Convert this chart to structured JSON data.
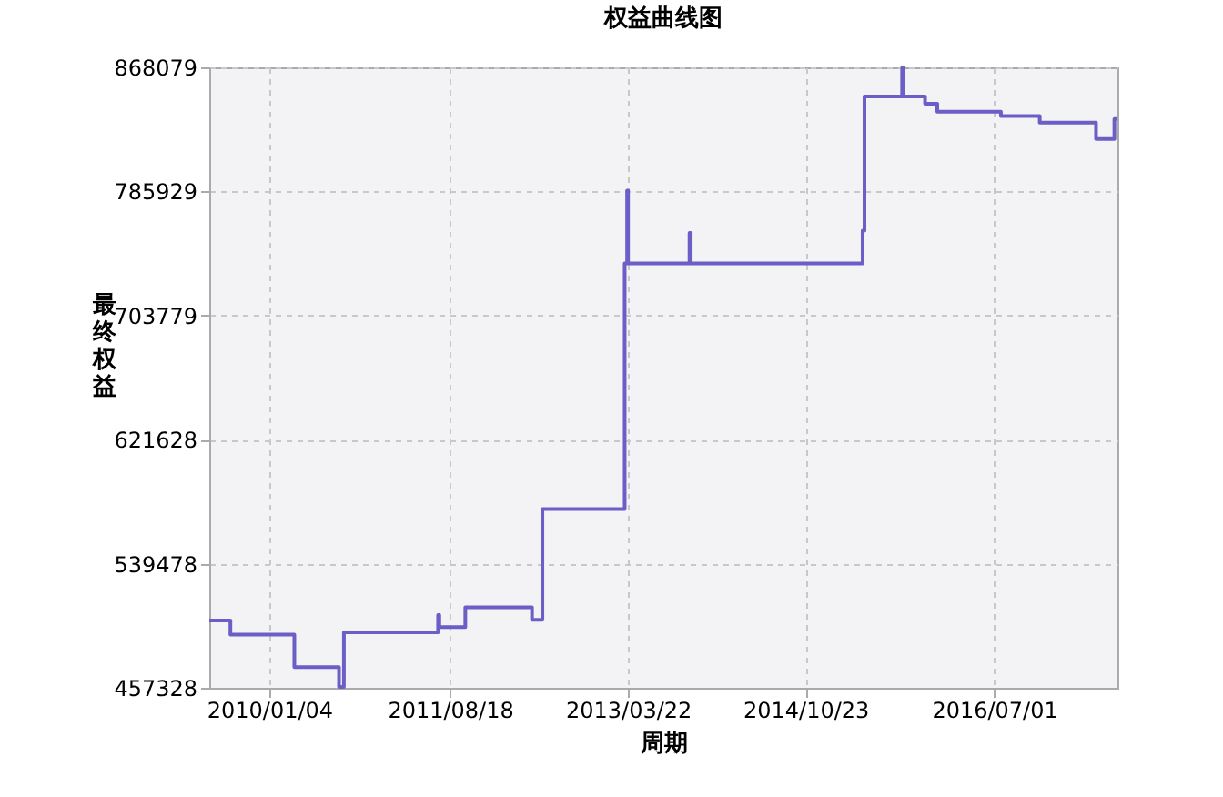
{
  "chart_data": {
    "type": "step",
    "title": "权益曲线图",
    "xlabel": "周期",
    "ylabel": "最终权益",
    "x": [
      "2009-06-22",
      "2009-08-30",
      "2010-03-27",
      "2010-08-20",
      "2010-09-05",
      "2011-07-10",
      "2011-07-14",
      "2011-10-07",
      "2012-05-12",
      "2012-06-15",
      "2013-03-11",
      "2013-03-19",
      "2013-03-22",
      "2013-10-09",
      "2013-10-13",
      "2015-04-28",
      "2015-05-04",
      "2015-09-04",
      "2015-09-08",
      "2015-11-18",
      "2015-12-28",
      "2016-07-23",
      "2016-11-27",
      "2017-05-30",
      "2017-07-29",
      "2017-08-08"
    ],
    "series": [
      {
        "color": "#6b5fc7",
        "values": [
          501900,
          492600,
          471000,
          458000,
          494000,
          505500,
          497500,
          510700,
          502300,
          575700,
          738300,
          786500,
          738300,
          758500,
          738300,
          760000,
          848800,
          868000,
          848800,
          844000,
          838700,
          835900,
          831500,
          820600,
          833900,
          833900
        ]
      }
    ],
    "xlim": [
      "2009-06-22",
      "2017-08-08"
    ],
    "xticks": [
      {
        "value": "2010-01-04",
        "label": "2010/01/04"
      },
      {
        "value": "2011-08-18",
        "label": "2011/08/18"
      },
      {
        "value": "2013-03-22",
        "label": "2013/03/22"
      },
      {
        "value": "2014-10-23",
        "label": "2014/10/23"
      },
      {
        "value": "2016-07-01",
        "label": "2016/07/01"
      }
    ],
    "ylim": [
      457328,
      868079
    ],
    "yticks": [
      457328,
      539478,
      621628,
      703779,
      785929,
      868079
    ],
    "grid": true,
    "line_style": "solid",
    "marker": "none"
  }
}
